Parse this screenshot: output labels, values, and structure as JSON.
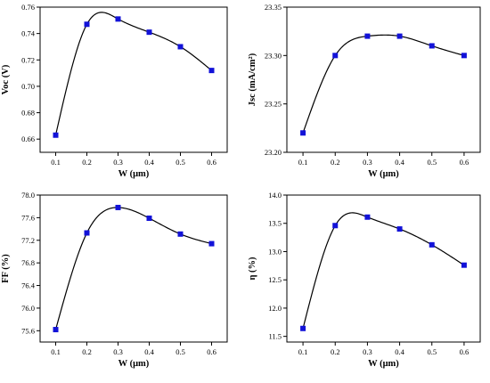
{
  "colors": {
    "marker": "#1212d8",
    "line": "#000000"
  },
  "chart_data": [
    {
      "type": "line",
      "xlabel": "W (μm)",
      "ylabel": "Voc (V)",
      "xlim": [
        0.05,
        0.65
      ],
      "ylim": [
        0.65,
        0.76
      ],
      "xticks": [
        "0.1",
        "0.2",
        "0.3",
        "0.4",
        "0.5",
        "0.6"
      ],
      "yticks": [
        "0.66",
        "0.68",
        "0.70",
        "0.72",
        "0.74",
        "0.76"
      ],
      "x": [
        0.1,
        0.2,
        0.3,
        0.4,
        0.5,
        0.6
      ],
      "y": [
        0.663,
        0.747,
        0.751,
        0.741,
        0.73,
        0.712
      ],
      "grid": false
    },
    {
      "type": "line",
      "xlabel": "W (μm)",
      "ylabel": "Jsc (mA/cm²)",
      "xlim": [
        0.05,
        0.65
      ],
      "ylim": [
        23.2,
        23.35
      ],
      "xticks": [
        "0.1",
        "0.2",
        "0.3",
        "0.4",
        "0.5",
        "0.6"
      ],
      "yticks": [
        "23.20",
        "23.25",
        "23.30",
        "23.35"
      ],
      "x": [
        0.1,
        0.2,
        0.3,
        0.4,
        0.5,
        0.6
      ],
      "y": [
        23.22,
        23.3,
        23.32,
        23.32,
        23.31,
        23.3
      ],
      "grid": false
    },
    {
      "type": "line",
      "xlabel": "W (μm)",
      "ylabel": "FF (%)",
      "xlim": [
        0.05,
        0.65
      ],
      "ylim": [
        75.4,
        78.0
      ],
      "xticks": [
        "0.1",
        "0.2",
        "0.3",
        "0.4",
        "0.5",
        "0.6"
      ],
      "yticks": [
        "75.6",
        "76.0",
        "76.4",
        "76.8",
        "77.2",
        "77.6",
        "78.0"
      ],
      "x": [
        0.1,
        0.2,
        0.3,
        0.4,
        0.5,
        0.6
      ],
      "y": [
        75.62,
        77.33,
        77.78,
        77.59,
        77.31,
        77.14
      ],
      "grid": false
    },
    {
      "type": "line",
      "xlabel": "W (μm)",
      "ylabel": "η (%)",
      "xlim": [
        0.05,
        0.65
      ],
      "ylim": [
        11.4,
        14.0
      ],
      "xticks": [
        "0.1",
        "0.2",
        "0.3",
        "0.4",
        "0.5",
        "0.6"
      ],
      "yticks": [
        "11.5",
        "12.0",
        "12.5",
        "13.0",
        "13.5",
        "14.0"
      ],
      "x": [
        0.1,
        0.2,
        0.3,
        0.4,
        0.5,
        0.6
      ],
      "y": [
        11.64,
        13.46,
        13.61,
        13.4,
        13.12,
        12.76
      ],
      "grid": false
    }
  ]
}
